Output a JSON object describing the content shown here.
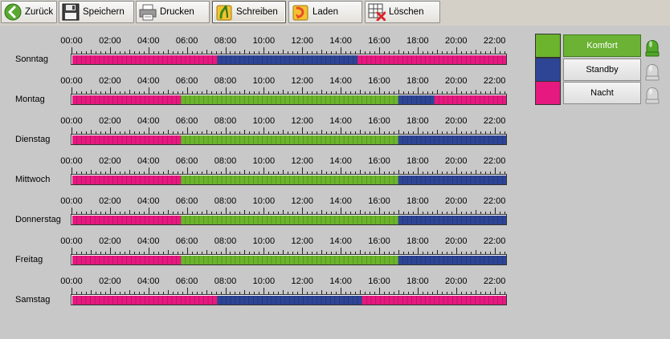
{
  "toolbar": {
    "buttons": [
      {
        "label": "Zurück",
        "icon": "back-arrow-icon",
        "color": "#5aa832"
      },
      {
        "label": "Speichern",
        "icon": "floppy-disk-icon",
        "color": "#404040"
      },
      {
        "label": "Drucken",
        "icon": "printer-icon",
        "color": "#808080"
      },
      {
        "label": "Schreiben",
        "icon": "write-icon",
        "color": "#f2c230"
      },
      {
        "label": "Laden",
        "icon": "load-icon",
        "color": "#e84a2a"
      },
      {
        "label": "Löschen",
        "icon": "delete-grid-icon",
        "color": "#d9262b"
      }
    ]
  },
  "hours": [
    "00:00",
    "02:00",
    "04:00",
    "06:00",
    "08:00",
    "10:00",
    "12:00",
    "14:00",
    "16:00",
    "18:00",
    "20:00",
    "22:00"
  ],
  "colors": {
    "Komfort": "#6bb42c",
    "Standby": "#2e4596",
    "Nacht": "#e5197f",
    "lamp_on": "#52a82a",
    "lamp_off": "#d6d6d6"
  },
  "days": [
    {
      "name": "Sonntag",
      "segments": [
        [
          "Nacht",
          0,
          8
        ],
        [
          "Standby",
          8,
          15.75
        ],
        [
          "Nacht",
          15.75,
          24
        ]
      ]
    },
    {
      "name": "Montag",
      "segments": [
        [
          "Nacht",
          0,
          6
        ],
        [
          "Komfort",
          6,
          18
        ],
        [
          "Standby",
          18,
          20
        ],
        [
          "Nacht",
          20,
          24
        ]
      ]
    },
    {
      "name": "Dienstag",
      "segments": [
        [
          "Nacht",
          0,
          6
        ],
        [
          "Komfort",
          6,
          18
        ],
        [
          "Standby",
          18,
          24
        ]
      ]
    },
    {
      "name": "Mittwoch",
      "segments": [
        [
          "Nacht",
          0,
          6
        ],
        [
          "Komfort",
          6,
          18
        ],
        [
          "Standby",
          18,
          24
        ]
      ]
    },
    {
      "name": "Donnerstag",
      "segments": [
        [
          "Nacht",
          0,
          6
        ],
        [
          "Komfort",
          6,
          18
        ],
        [
          "Standby",
          18,
          24
        ]
      ]
    },
    {
      "name": "Freitag",
      "segments": [
        [
          "Nacht",
          0,
          6
        ],
        [
          "Komfort",
          6,
          18
        ],
        [
          "Standby",
          18,
          24
        ]
      ]
    },
    {
      "name": "Samstag",
      "segments": [
        [
          "Nacht",
          0,
          8
        ],
        [
          "Standby",
          8,
          16
        ],
        [
          "Nacht",
          16,
          24
        ]
      ]
    }
  ],
  "modes": [
    {
      "label": "Komfort",
      "key": "Komfort",
      "active": true
    },
    {
      "label": "Standby",
      "key": "Standby",
      "active": false
    },
    {
      "label": "Nacht",
      "key": "Nacht",
      "active": false
    }
  ]
}
